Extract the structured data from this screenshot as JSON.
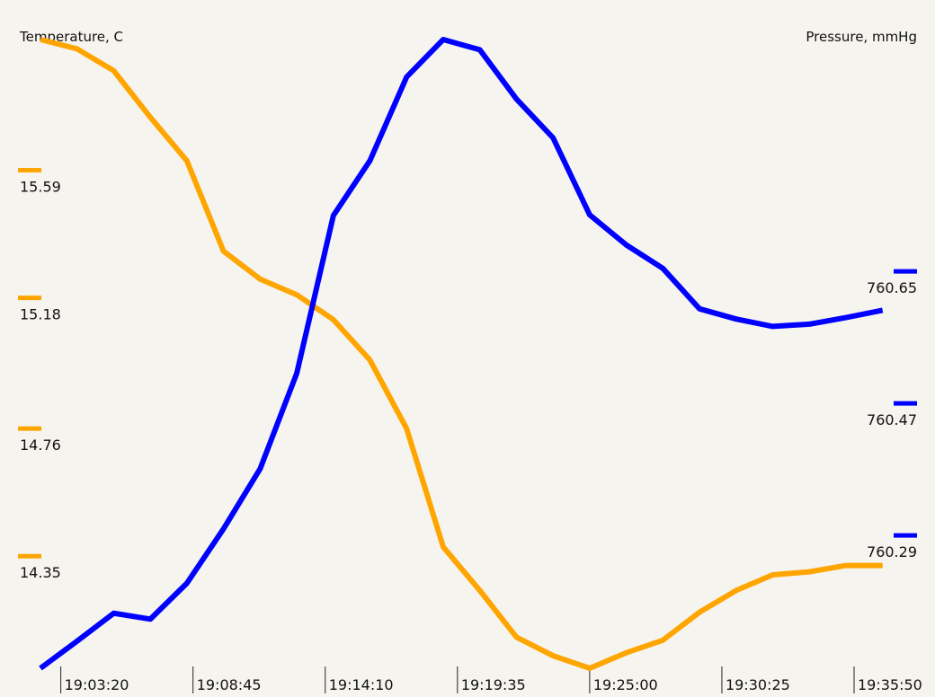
{
  "chart_data": {
    "type": "line",
    "left_axis_label": "Temperature, C",
    "right_axis_label": "Pressure, mmHg",
    "x_ticks": [
      "19:03:20",
      "19:08:45",
      "19:14:10",
      "19:19:35",
      "19:25:00",
      "19:30:25",
      "19:35:50"
    ],
    "x_tick_seconds": [
      68600,
      68925,
      69250,
      69575,
      69900,
      70225,
      70550
    ],
    "x_range_seconds": [
      68550,
      70645
    ],
    "left_ticks": [
      15.59,
      15.18,
      14.76,
      14.35
    ],
    "right_ticks": [
      760.65,
      760.47,
      760.29
    ],
    "left_range": [
      13.99,
      16.01
    ],
    "right_range": [
      760.109,
      760.966
    ],
    "series": [
      {
        "axis": "left",
        "color": "#ffa500",
        "x": [
          68550,
          68640,
          68730,
          68820,
          68910,
          69000,
          69090,
          69180,
          69270,
          69360,
          69450,
          69540,
          69630,
          69720,
          69810,
          69900,
          69990,
          70080,
          70170,
          70260,
          70350,
          70440,
          70530,
          70620
        ],
        "y": [
          16.01,
          15.98,
          15.91,
          15.76,
          15.62,
          15.33,
          15.24,
          15.19,
          15.11,
          14.98,
          14.76,
          14.38,
          14.24,
          14.09,
          14.03,
          13.99,
          14.04,
          14.08,
          14.17,
          14.24,
          14.29,
          14.3,
          14.32,
          14.32
        ]
      },
      {
        "axis": "right",
        "color": "#0000ff",
        "x": [
          68550,
          68640,
          68730,
          68820,
          68910,
          69000,
          69090,
          69180,
          69270,
          69360,
          69450,
          69540,
          69630,
          69720,
          69810,
          69900,
          69990,
          70080,
          70170,
          70260,
          70350,
          70440,
          70530,
          70620
        ],
        "y": [
          760.109,
          760.146,
          760.184,
          760.176,
          760.225,
          760.299,
          760.381,
          760.511,
          760.726,
          760.801,
          760.915,
          760.966,
          760.952,
          760.885,
          760.832,
          760.727,
          760.686,
          760.654,
          760.599,
          760.585,
          760.575,
          760.578,
          760.587,
          760.597
        ]
      }
    ]
  }
}
